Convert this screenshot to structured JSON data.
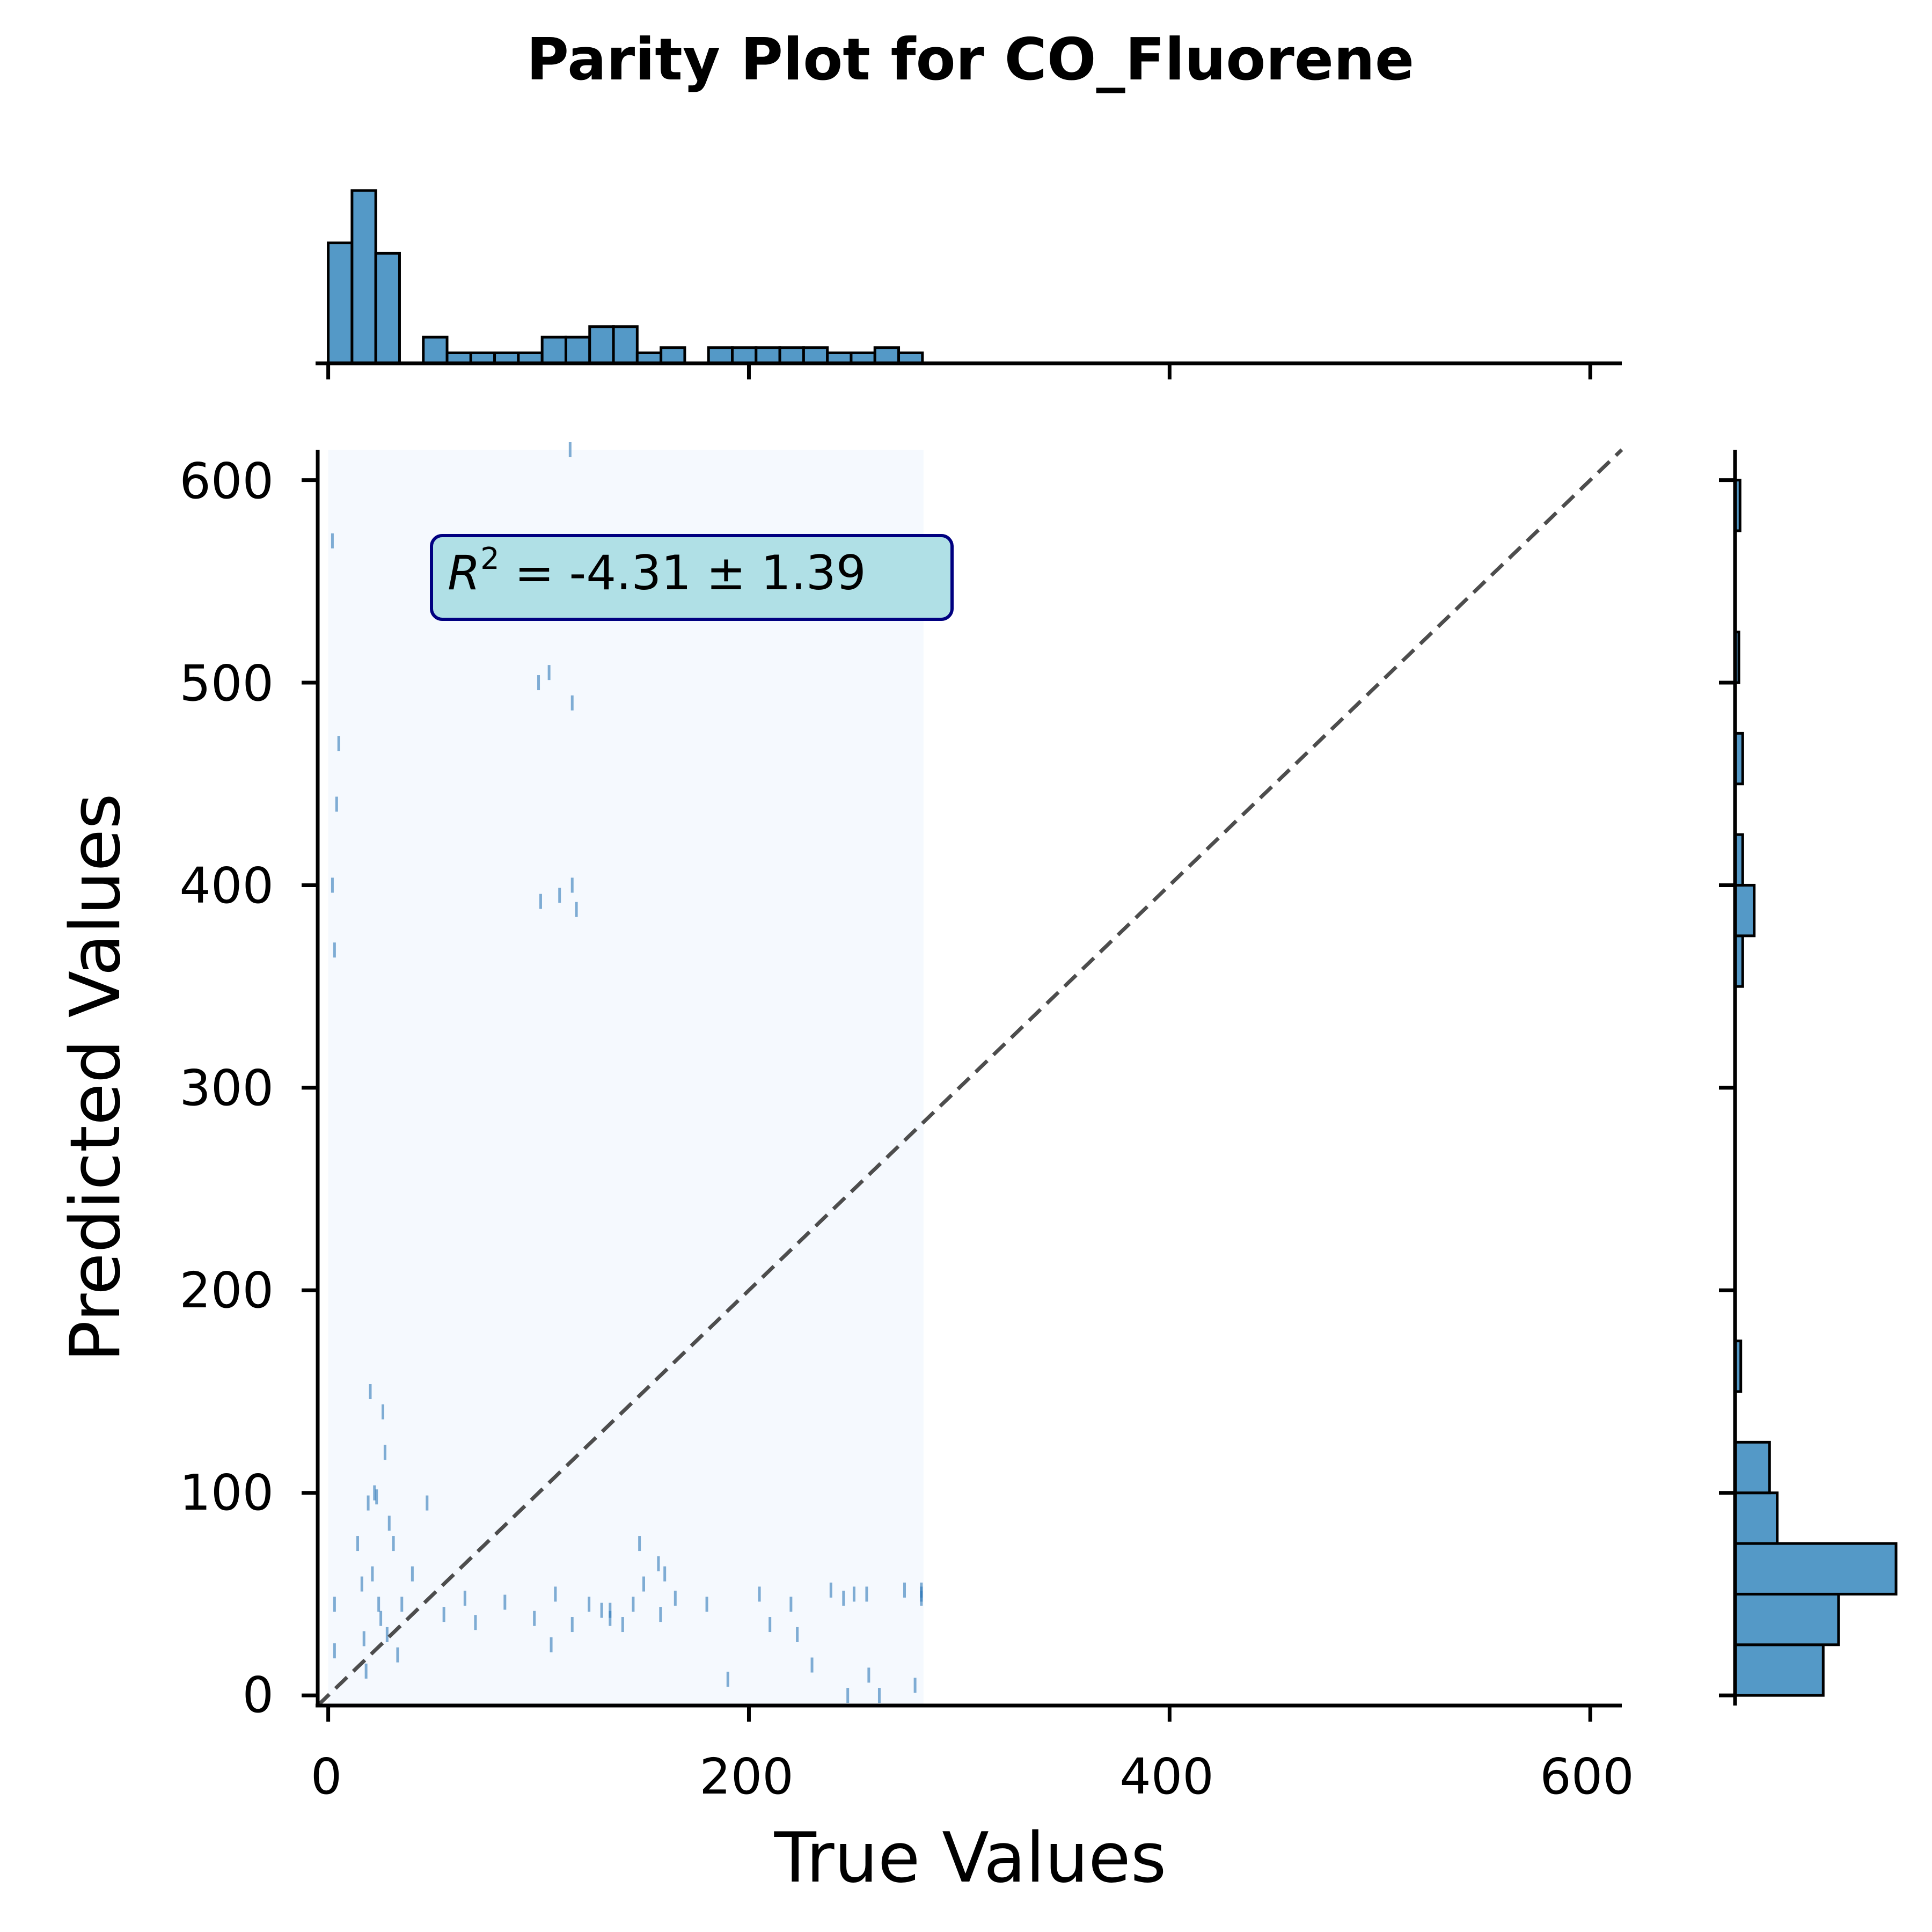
{
  "chart_data": {
    "type": "scatter",
    "title": "Parity Plot for CO_Fluorene",
    "xlabel": "True Values",
    "ylabel": "Predicted Values",
    "xlim": [
      -5,
      615
    ],
    "ylim": [
      -5,
      615
    ],
    "xticks": [
      "0",
      "200",
      "400",
      "600"
    ],
    "yticks": [
      "0",
      "100",
      "200",
      "300",
      "400",
      "500",
      "600"
    ],
    "annotation": {
      "sup": "2",
      "text": " = -4.31 ± 1.39"
    },
    "colors": {
      "bar": "#5499c7",
      "density_bg": "#f5f9fe",
      "point": "#2e78b8",
      "parity_line": "#4d4d4d",
      "annot_bg": "#b0e0e6",
      "annot_border": "#000080"
    },
    "density_region": {
      "x": [
        0,
        283
      ],
      "y": [
        -5,
        615
      ]
    },
    "parity_line": [
      [
        -5,
        -5
      ],
      [
        615,
        615
      ]
    ],
    "points": [
      [
        3,
        45
      ],
      [
        3,
        22
      ],
      [
        2,
        400
      ],
      [
        3,
        368
      ],
      [
        4,
        440
      ],
      [
        2,
        570
      ],
      [
        5,
        470
      ],
      [
        14,
        75
      ],
      [
        16,
        55
      ],
      [
        17,
        28
      ],
      [
        18,
        12
      ],
      [
        19,
        95
      ],
      [
        20,
        150
      ],
      [
        21,
        60
      ],
      [
        22,
        100
      ],
      [
        23,
        98
      ],
      [
        24,
        45
      ],
      [
        25,
        38
      ],
      [
        26,
        140
      ],
      [
        27,
        120
      ],
      [
        28,
        30
      ],
      [
        29,
        85
      ],
      [
        31,
        75
      ],
      [
        33,
        20
      ],
      [
        35,
        45
      ],
      [
        40,
        60
      ],
      [
        47,
        95
      ],
      [
        55,
        40
      ],
      [
        65,
        48
      ],
      [
        70,
        36
      ],
      [
        84,
        46
      ],
      [
        98,
        38
      ],
      [
        106,
        25
      ],
      [
        108,
        50
      ],
      [
        116,
        35
      ],
      [
        124,
        45
      ],
      [
        130,
        42
      ],
      [
        134,
        42
      ],
      [
        134,
        38
      ],
      [
        140,
        35
      ],
      [
        145,
        45
      ],
      [
        150,
        55
      ],
      [
        148,
        75
      ],
      [
        157,
        65
      ],
      [
        158,
        40
      ],
      [
        160,
        60
      ],
      [
        165,
        48
      ],
      [
        180,
        45
      ],
      [
        190,
        8
      ],
      [
        205,
        50
      ],
      [
        210,
        35
      ],
      [
        220,
        45
      ],
      [
        223,
        30
      ],
      [
        230,
        15
      ],
      [
        239,
        52
      ],
      [
        245,
        48
      ],
      [
        250,
        50
      ],
      [
        256,
        50
      ],
      [
        247,
        0
      ],
      [
        257,
        10
      ],
      [
        262,
        0
      ],
      [
        274,
        52
      ],
      [
        279,
        5
      ],
      [
        282,
        50
      ],
      [
        282,
        52
      ],
      [
        282,
        48
      ],
      [
        100,
        500
      ],
      [
        101,
        392
      ],
      [
        105,
        505
      ],
      [
        110,
        395
      ],
      [
        116,
        490
      ],
      [
        116,
        400
      ],
      [
        118,
        388
      ],
      [
        115,
        615
      ]
    ],
    "x_hist": {
      "bin_width": 11.3,
      "counts": [
        23,
        33,
        21,
        0,
        5,
        2,
        2,
        2,
        2,
        5,
        5,
        7,
        7,
        2,
        3,
        0,
        3,
        3,
        3,
        3,
        3,
        2,
        2,
        3,
        2
      ]
    },
    "y_hist": {
      "bin_width": 25,
      "bins": [
        [
          0,
          23
        ],
        [
          25,
          27
        ],
        [
          50,
          42
        ],
        [
          75,
          11
        ],
        [
          100,
          9
        ],
        [
          150,
          1.5
        ],
        [
          350,
          2
        ],
        [
          375,
          5
        ],
        [
          400,
          2
        ],
        [
          450,
          2
        ],
        [
          500,
          1
        ],
        [
          575,
          1.3
        ]
      ]
    }
  }
}
